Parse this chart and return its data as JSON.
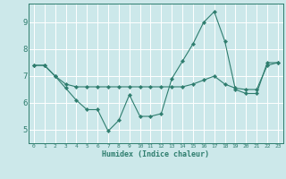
{
  "xlabel": "Humidex (Indice chaleur)",
  "bg_color": "#cce8ea",
  "grid_color": "#ffffff",
  "line_color": "#2e7d6e",
  "xlim": [
    -0.5,
    23.5
  ],
  "ylim": [
    4.5,
    9.7
  ],
  "yticks": [
    5,
    6,
    7,
    8,
    9
  ],
  "xticks": [
    0,
    1,
    2,
    3,
    4,
    5,
    6,
    7,
    8,
    9,
    10,
    11,
    12,
    13,
    14,
    15,
    16,
    17,
    18,
    19,
    20,
    21,
    22,
    23
  ],
  "line1_x": [
    0,
    1,
    2,
    3,
    4,
    5,
    6,
    7,
    8,
    9,
    10,
    11,
    12,
    13,
    14,
    15,
    16,
    17,
    18,
    19,
    20,
    21,
    22,
    23
  ],
  "line1_y": [
    7.4,
    7.4,
    7.0,
    6.55,
    6.1,
    5.75,
    5.75,
    4.95,
    5.35,
    6.3,
    5.5,
    5.5,
    5.6,
    6.9,
    7.55,
    8.2,
    9.0,
    9.4,
    8.3,
    6.5,
    6.35,
    6.35,
    7.5,
    7.5
  ],
  "line2_x": [
    0,
    1,
    2,
    3,
    4,
    5,
    6,
    7,
    8,
    9,
    10,
    11,
    12,
    13,
    14,
    15,
    16,
    17,
    18,
    19,
    20,
    21,
    22,
    23
  ],
  "line2_y": [
    7.4,
    7.4,
    7.0,
    6.7,
    6.6,
    6.6,
    6.6,
    6.6,
    6.6,
    6.6,
    6.6,
    6.6,
    6.6,
    6.6,
    6.6,
    6.7,
    6.85,
    7.0,
    6.7,
    6.55,
    6.5,
    6.5,
    7.4,
    7.5
  ]
}
